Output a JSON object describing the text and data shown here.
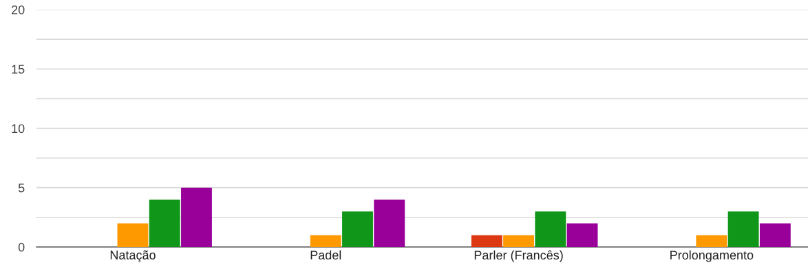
{
  "chart_data": {
    "type": "bar",
    "categories": [
      "Natação",
      "Padel",
      "Parler (Francês)",
      "Prolongamento"
    ],
    "series": [
      {
        "color": "#3366cc",
        "values": [
          0,
          0,
          0,
          0
        ]
      },
      {
        "color": "#dc3912",
        "values": [
          0,
          0,
          1,
          0
        ]
      },
      {
        "color": "#ff9900",
        "values": [
          2,
          1,
          1,
          1
        ]
      },
      {
        "color": "#109618",
        "values": [
          4,
          3,
          3,
          3
        ]
      },
      {
        "color": "#990099",
        "values": [
          5,
          4,
          2,
          2
        ]
      }
    ],
    "ylim": [
      0,
      20
    ],
    "yticks": [
      0,
      {
        "value": 2.5,
        "label": null
      },
      5,
      {
        "value": 7.5,
        "label": null
      },
      10,
      {
        "value": 12.5,
        "label": null
      },
      15,
      {
        "value": 17.5,
        "label": null
      },
      20
    ],
    "grid": "y",
    "legend": false
  }
}
